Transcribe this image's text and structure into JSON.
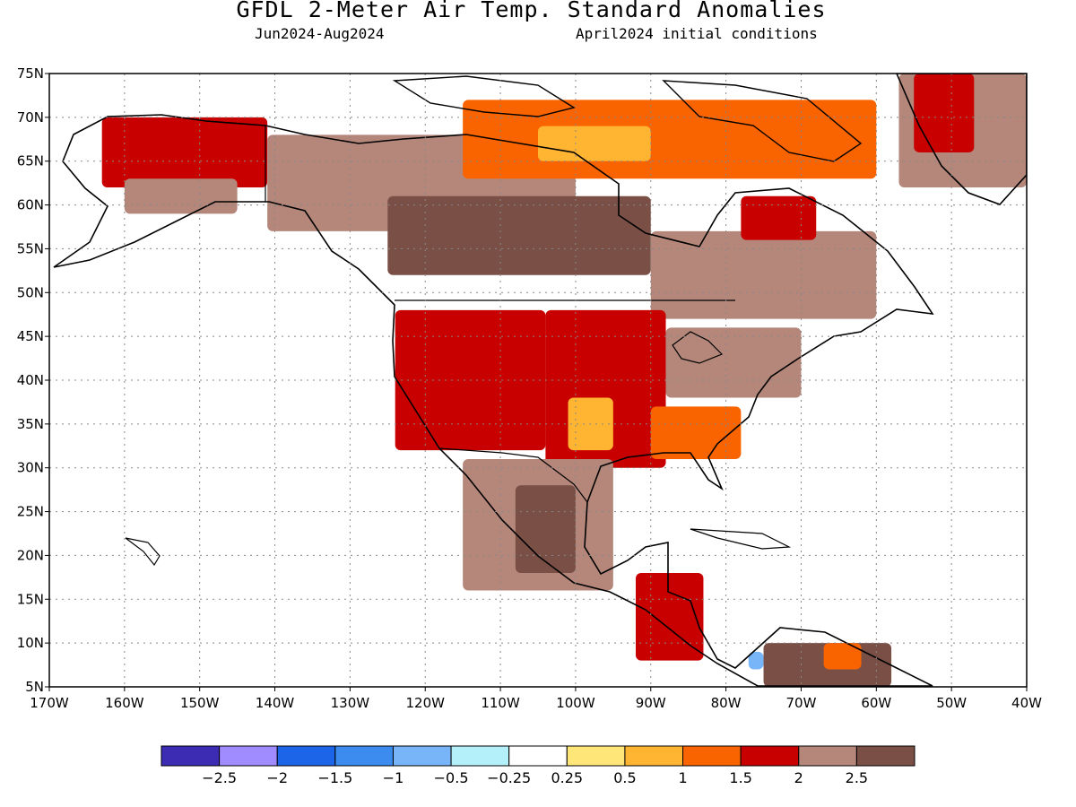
{
  "header": {
    "title": "GFDL 2-Meter Air Temp. Standard Anomalies",
    "period": "Jun2024-Aug2024",
    "init": "April2024 initial conditions"
  },
  "map": {
    "lon_range": [
      -170,
      -40
    ],
    "lat_range": [
      5,
      75
    ],
    "lat_ticks": [
      "75N",
      "70N",
      "65N",
      "60N",
      "55N",
      "50N",
      "45N",
      "40N",
      "35N",
      "30N",
      "25N",
      "20N",
      "15N",
      "10N",
      "5N"
    ],
    "lon_ticks": [
      "170W",
      "160W",
      "150W",
      "140W",
      "130W",
      "120W",
      "110W",
      "100W",
      "90W",
      "80W",
      "70W",
      "60W",
      "50W",
      "40W"
    ],
    "grid": true
  },
  "colorbar": {
    "colors": [
      "#3c2cb4",
      "#a08cff",
      "#1c64e8",
      "#3c8cf0",
      "#78b4f8",
      "#b4f0fa",
      "#ffffff",
      "#ffe678",
      "#ffb432",
      "#fa6400",
      "#c80000",
      "#b4877a",
      "#7a4f46"
    ],
    "labels": [
      "−2.5",
      "−2",
      "−1.5",
      "−1",
      "−0.5",
      "−0.25",
      "0.25",
      "0.5",
      "1",
      "1.5",
      "2",
      "2.5"
    ]
  },
  "regions": [
    {
      "name": "alaska-north",
      "color": "#c80000",
      "lon": [
        -163,
        -141
      ],
      "lat": [
        62,
        70
      ]
    },
    {
      "name": "alaska-south",
      "color": "#b4877a",
      "lon": [
        -160,
        -145
      ],
      "lat": [
        59,
        63
      ]
    },
    {
      "name": "yukon-nwt",
      "color": "#b4877a",
      "lon": [
        -141,
        -100
      ],
      "lat": [
        57,
        68
      ]
    },
    {
      "name": "canada-central",
      "color": "#7a4f46",
      "lon": [
        -125,
        -90
      ],
      "lat": [
        52,
        61
      ]
    },
    {
      "name": "canada-east",
      "color": "#b4877a",
      "lon": [
        -90,
        -60
      ],
      "lat": [
        47,
        57
      ]
    },
    {
      "name": "quebec-red",
      "color": "#c80000",
      "lon": [
        -78,
        -68
      ],
      "lat": [
        56,
        61
      ]
    },
    {
      "name": "arctic-islands",
      "color": "#fa6400",
      "lon": [
        -115,
        -60
      ],
      "lat": [
        63,
        72
      ]
    },
    {
      "name": "arctic-yellow",
      "color": "#ffb432",
      "lon": [
        -105,
        -90
      ],
      "lat": [
        65,
        69
      ]
    },
    {
      "name": "greenland",
      "color": "#b4877a",
      "lon": [
        -57,
        -40
      ],
      "lat": [
        62,
        75
      ]
    },
    {
      "name": "greenland-red",
      "color": "#c80000",
      "lon": [
        -55,
        -47
      ],
      "lat": [
        66,
        75
      ]
    },
    {
      "name": "us-west",
      "color": "#c80000",
      "lon": [
        -124,
        -104
      ],
      "lat": [
        32,
        48
      ]
    },
    {
      "name": "us-central",
      "color": "#c80000",
      "lon": [
        -104,
        -88
      ],
      "lat": [
        30,
        48
      ]
    },
    {
      "name": "us-south-orange",
      "color": "#ffb432",
      "lon": [
        -101,
        -95
      ],
      "lat": [
        32,
        38
      ]
    },
    {
      "name": "us-southeast",
      "color": "#fa6400",
      "lon": [
        -90,
        -78
      ],
      "lat": [
        31,
        37
      ]
    },
    {
      "name": "us-northeast",
      "color": "#b4877a",
      "lon": [
        -88,
        -70
      ],
      "lat": [
        38,
        46
      ]
    },
    {
      "name": "mexico",
      "color": "#b4877a",
      "lon": [
        -115,
        -95
      ],
      "lat": [
        16,
        31
      ]
    },
    {
      "name": "mexico-dark",
      "color": "#7a4f46",
      "lon": [
        -108,
        -100
      ],
      "lat": [
        18,
        28
      ]
    },
    {
      "name": "central-america",
      "color": "#c80000",
      "lon": [
        -92,
        -83
      ],
      "lat": [
        8,
        18
      ]
    },
    {
      "name": "south-america",
      "color": "#7a4f46",
      "lon": [
        -75,
        -58
      ],
      "lat": [
        5,
        10
      ]
    },
    {
      "name": "venezuela-orange",
      "color": "#fa6400",
      "lon": [
        -67,
        -62
      ],
      "lat": [
        7,
        10
      ]
    },
    {
      "name": "colombia-blue",
      "color": "#78b4f8",
      "lon": [
        -77,
        -75
      ],
      "lat": [
        7,
        9
      ]
    }
  ]
}
